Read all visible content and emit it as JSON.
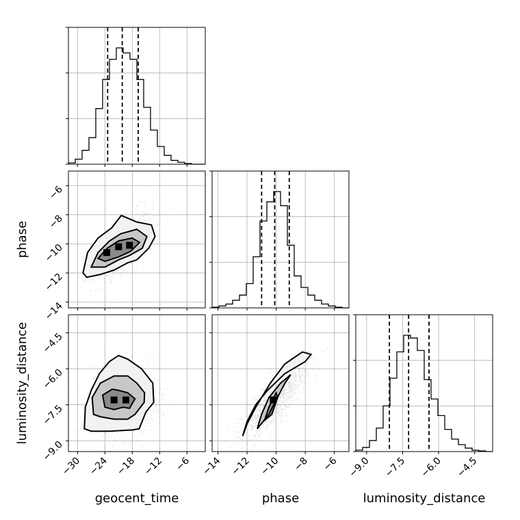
{
  "chart_data": {
    "type": "corner",
    "parameters": [
      "geocent_time",
      "phase",
      "luminosity_distance"
    ],
    "axis_labels": {
      "geocent_time": "geocent_time",
      "phase": "phase",
      "luminosity_distance": "luminosity_distance"
    },
    "ranges": {
      "geocent_time": [
        -32,
        -2
      ],
      "phase": [
        -14.4,
        -5.0
      ],
      "luminosity_distance": [
        -9.45,
        -3.75
      ]
    },
    "ticks": {
      "geocent_time": {
        "values": [
          -30,
          -24,
          -18,
          -12,
          -6
        ],
        "labels": [
          "−30",
          "−24",
          "−18",
          "−12",
          "−6"
        ]
      },
      "phase": {
        "values": [
          -14,
          -12,
          -10,
          -8,
          -6
        ],
        "labels": [
          "−14",
          "−12",
          "−10",
          "−8",
          "−6"
        ]
      },
      "luminosity_distance": {
        "values": [
          -9.0,
          -7.5,
          -6.0,
          -4.5
        ],
        "labels": [
          "−9.0",
          "−7.5",
          "−6.0",
          "−4.5"
        ]
      }
    },
    "quantiles": {
      "geocent_time": [
        -23.4,
        -20.2,
        -16.7
      ],
      "phase": [
        -11.0,
        -10.1,
        -9.1
      ],
      "luminosity_distance": [
        -8.05,
        -7.25,
        -6.4
      ]
    },
    "histograms": {
      "geocent_time": {
        "edges": [
          -32,
          -30.5,
          -29,
          -27.5,
          -26,
          -24.5,
          -23,
          -21.5,
          -20,
          -18.5,
          -17,
          -15.5,
          -14,
          -12.5,
          -11,
          -9.5,
          -8,
          -6.5,
          -5,
          -3.5,
          -2
        ],
        "counts": [
          0.01,
          0.04,
          0.11,
          0.21,
          0.44,
          0.67,
          0.83,
          0.92,
          0.88,
          0.83,
          0.67,
          0.45,
          0.27,
          0.14,
          0.07,
          0.03,
          0.015,
          0.005,
          0,
          0
        ]
      },
      "phase": {
        "edges": [
          -14.4,
          -13.93,
          -13.46,
          -12.99,
          -12.52,
          -12.05,
          -11.58,
          -11.11,
          -10.64,
          -10.17,
          -9.7,
          -9.23,
          -8.76,
          -8.29,
          -7.82,
          -7.35,
          -6.88,
          -6.41,
          -5.94,
          -5.47,
          -5.0
        ],
        "counts": [
          0.005,
          0.015,
          0.03,
          0.06,
          0.1,
          0.19,
          0.4,
          0.68,
          0.83,
          0.91,
          0.8,
          0.49,
          0.25,
          0.16,
          0.1,
          0.06,
          0.03,
          0.015,
          0.005,
          0
        ]
      },
      "luminosity_distance": {
        "edges": [
          -9.45,
          -9.165,
          -8.88,
          -8.595,
          -8.31,
          -8.025,
          -7.74,
          -7.455,
          -7.17,
          -6.885,
          -6.6,
          -6.315,
          -6.03,
          -5.745,
          -5.46,
          -5.175,
          -4.89,
          -4.605,
          -4.32,
          -4.035,
          -3.75
        ],
        "counts": [
          0.01,
          0.03,
          0.08,
          0.17,
          0.33,
          0.53,
          0.72,
          0.84,
          0.82,
          0.73,
          0.52,
          0.38,
          0.26,
          0.16,
          0.09,
          0.05,
          0.025,
          0.01,
          0.005,
          0
        ]
      }
    },
    "pairs": [
      {
        "x": "geocent_time",
        "y": "phase",
        "rho": 0.62,
        "means": [
          -20.2,
          -10.1
        ],
        "stds": [
          3.4,
          1.1
        ],
        "contours": [
          [
            [
              -28.8,
              -12.0
            ],
            [
              -27.8,
              -10.6
            ],
            [
              -25.5,
              -9.6
            ],
            [
              -22.5,
              -8.9
            ],
            [
              -20.4,
              -8.05
            ],
            [
              -17.0,
              -8.5
            ],
            [
              -13.8,
              -8.7
            ],
            [
              -13.0,
              -9.5
            ],
            [
              -14.4,
              -10.3
            ],
            [
              -17.0,
              -11.1
            ],
            [
              -19.0,
              -11.3
            ],
            [
              -22.0,
              -11.8
            ],
            [
              -25.0,
              -12.1
            ],
            [
              -28.0,
              -12.3
            ]
          ],
          [
            [
              -27.0,
              -11.6
            ],
            [
              -25.5,
              -10.6
            ],
            [
              -23.0,
              -9.8
            ],
            [
              -20.5,
              -9.3
            ],
            [
              -17.0,
              -9.0
            ],
            [
              -14.8,
              -9.5
            ],
            [
              -15.8,
              -10.3
            ],
            [
              -18.6,
              -10.8
            ],
            [
              -21.0,
              -11.1
            ],
            [
              -24.0,
              -11.6
            ]
          ],
          [
            [
              -25.5,
              -11.0
            ],
            [
              -23.5,
              -10.3
            ],
            [
              -21.0,
              -9.8
            ],
            [
              -18.0,
              -9.6
            ],
            [
              -16.4,
              -9.9
            ],
            [
              -18.3,
              -10.5
            ],
            [
              -21.0,
              -10.9
            ],
            [
              -24.0,
              -11.2
            ]
          ]
        ],
        "density_peaks": [
          [
            -23.6,
            -10.6
          ],
          [
            -21.0,
            -10.2
          ],
          [
            -18.6,
            -10.1
          ]
        ]
      },
      {
        "x": "geocent_time",
        "y": "luminosity_distance",
        "rho": 0.0,
        "means": [
          -20.2,
          -7.25
        ],
        "stds": [
          3.5,
          0.75
        ],
        "contours": [
          [
            [
              -28.5,
              -8.5
            ],
            [
              -28.3,
              -7.6
            ],
            [
              -27.0,
              -6.9
            ],
            [
              -25.2,
              -6.2
            ],
            [
              -23.0,
              -5.7
            ],
            [
              -21.0,
              -5.45
            ],
            [
              -19.0,
              -5.6
            ],
            [
              -16.0,
              -6.0
            ],
            [
              -13.5,
              -6.6
            ],
            [
              -13.3,
              -7.4
            ],
            [
              -15.0,
              -7.8
            ],
            [
              -16.5,
              -8.5
            ],
            [
              -18.0,
              -8.55
            ],
            [
              -23.0,
              -8.6
            ],
            [
              -27.0,
              -8.6
            ]
          ],
          [
            [
              -26.5,
              -7.9
            ],
            [
              -26.8,
              -7.2
            ],
            [
              -25.0,
              -6.6
            ],
            [
              -22.0,
              -6.3
            ],
            [
              -19.0,
              -6.3
            ],
            [
              -17.0,
              -6.6
            ],
            [
              -15.3,
              -7.0
            ],
            [
              -15.4,
              -7.4
            ],
            [
              -17.4,
              -7.9
            ],
            [
              -19.0,
              -8.1
            ],
            [
              -22.0,
              -8.1
            ],
            [
              -25.0,
              -8.0
            ]
          ],
          [
            [
              -24.0,
              -7.6
            ],
            [
              -24.5,
              -7.1
            ],
            [
              -22.4,
              -6.85
            ],
            [
              -21.0,
              -6.9
            ],
            [
              -19.0,
              -7.0
            ],
            [
              -17.4,
              -7.25
            ],
            [
              -18.6,
              -7.65
            ],
            [
              -20.0,
              -7.6
            ],
            [
              -22.0,
              -7.7
            ]
          ]
        ],
        "density_peaks": [
          [
            -19.4,
            -7.3
          ],
          [
            -22.0,
            -7.3
          ]
        ]
      },
      {
        "x": "phase",
        "y": "luminosity_distance",
        "rho": 0.8,
        "means": [
          -10.1,
          -7.25
        ],
        "stds": [
          1.1,
          0.75
        ],
        "contours": [
          [
            [
              -12.3,
              -8.8
            ],
            [
              -12.0,
              -8.2
            ],
            [
              -11.4,
              -7.5
            ],
            [
              -10.6,
              -6.9
            ],
            [
              -9.4,
              -6.2
            ],
            [
              -8.0,
              -5.7
            ],
            [
              -7.6,
              -5.4
            ],
            [
              -8.2,
              -5.3
            ],
            [
              -9.4,
              -5.8
            ],
            [
              -10.4,
              -6.6
            ],
            [
              -11.4,
              -7.6
            ],
            [
              -12.0,
              -8.3
            ]
          ],
          [
            [
              -11.3,
              -8.5
            ],
            [
              -11.0,
              -7.9
            ],
            [
              -10.5,
              -7.2
            ],
            [
              -9.7,
              -6.6
            ],
            [
              -9.0,
              -6.25
            ],
            [
              -9.4,
              -6.6
            ],
            [
              -10.0,
              -7.3
            ],
            [
              -10.5,
              -7.9
            ]
          ],
          [
            [
              -10.8,
              -8.15
            ],
            [
              -10.5,
              -7.6
            ],
            [
              -10.0,
              -7.0
            ],
            [
              -9.9,
              -7.2
            ],
            [
              -10.3,
              -7.9
            ]
          ]
        ],
        "density_peaks": [
          [
            -10.2,
            -7.3
          ]
        ]
      }
    ]
  }
}
